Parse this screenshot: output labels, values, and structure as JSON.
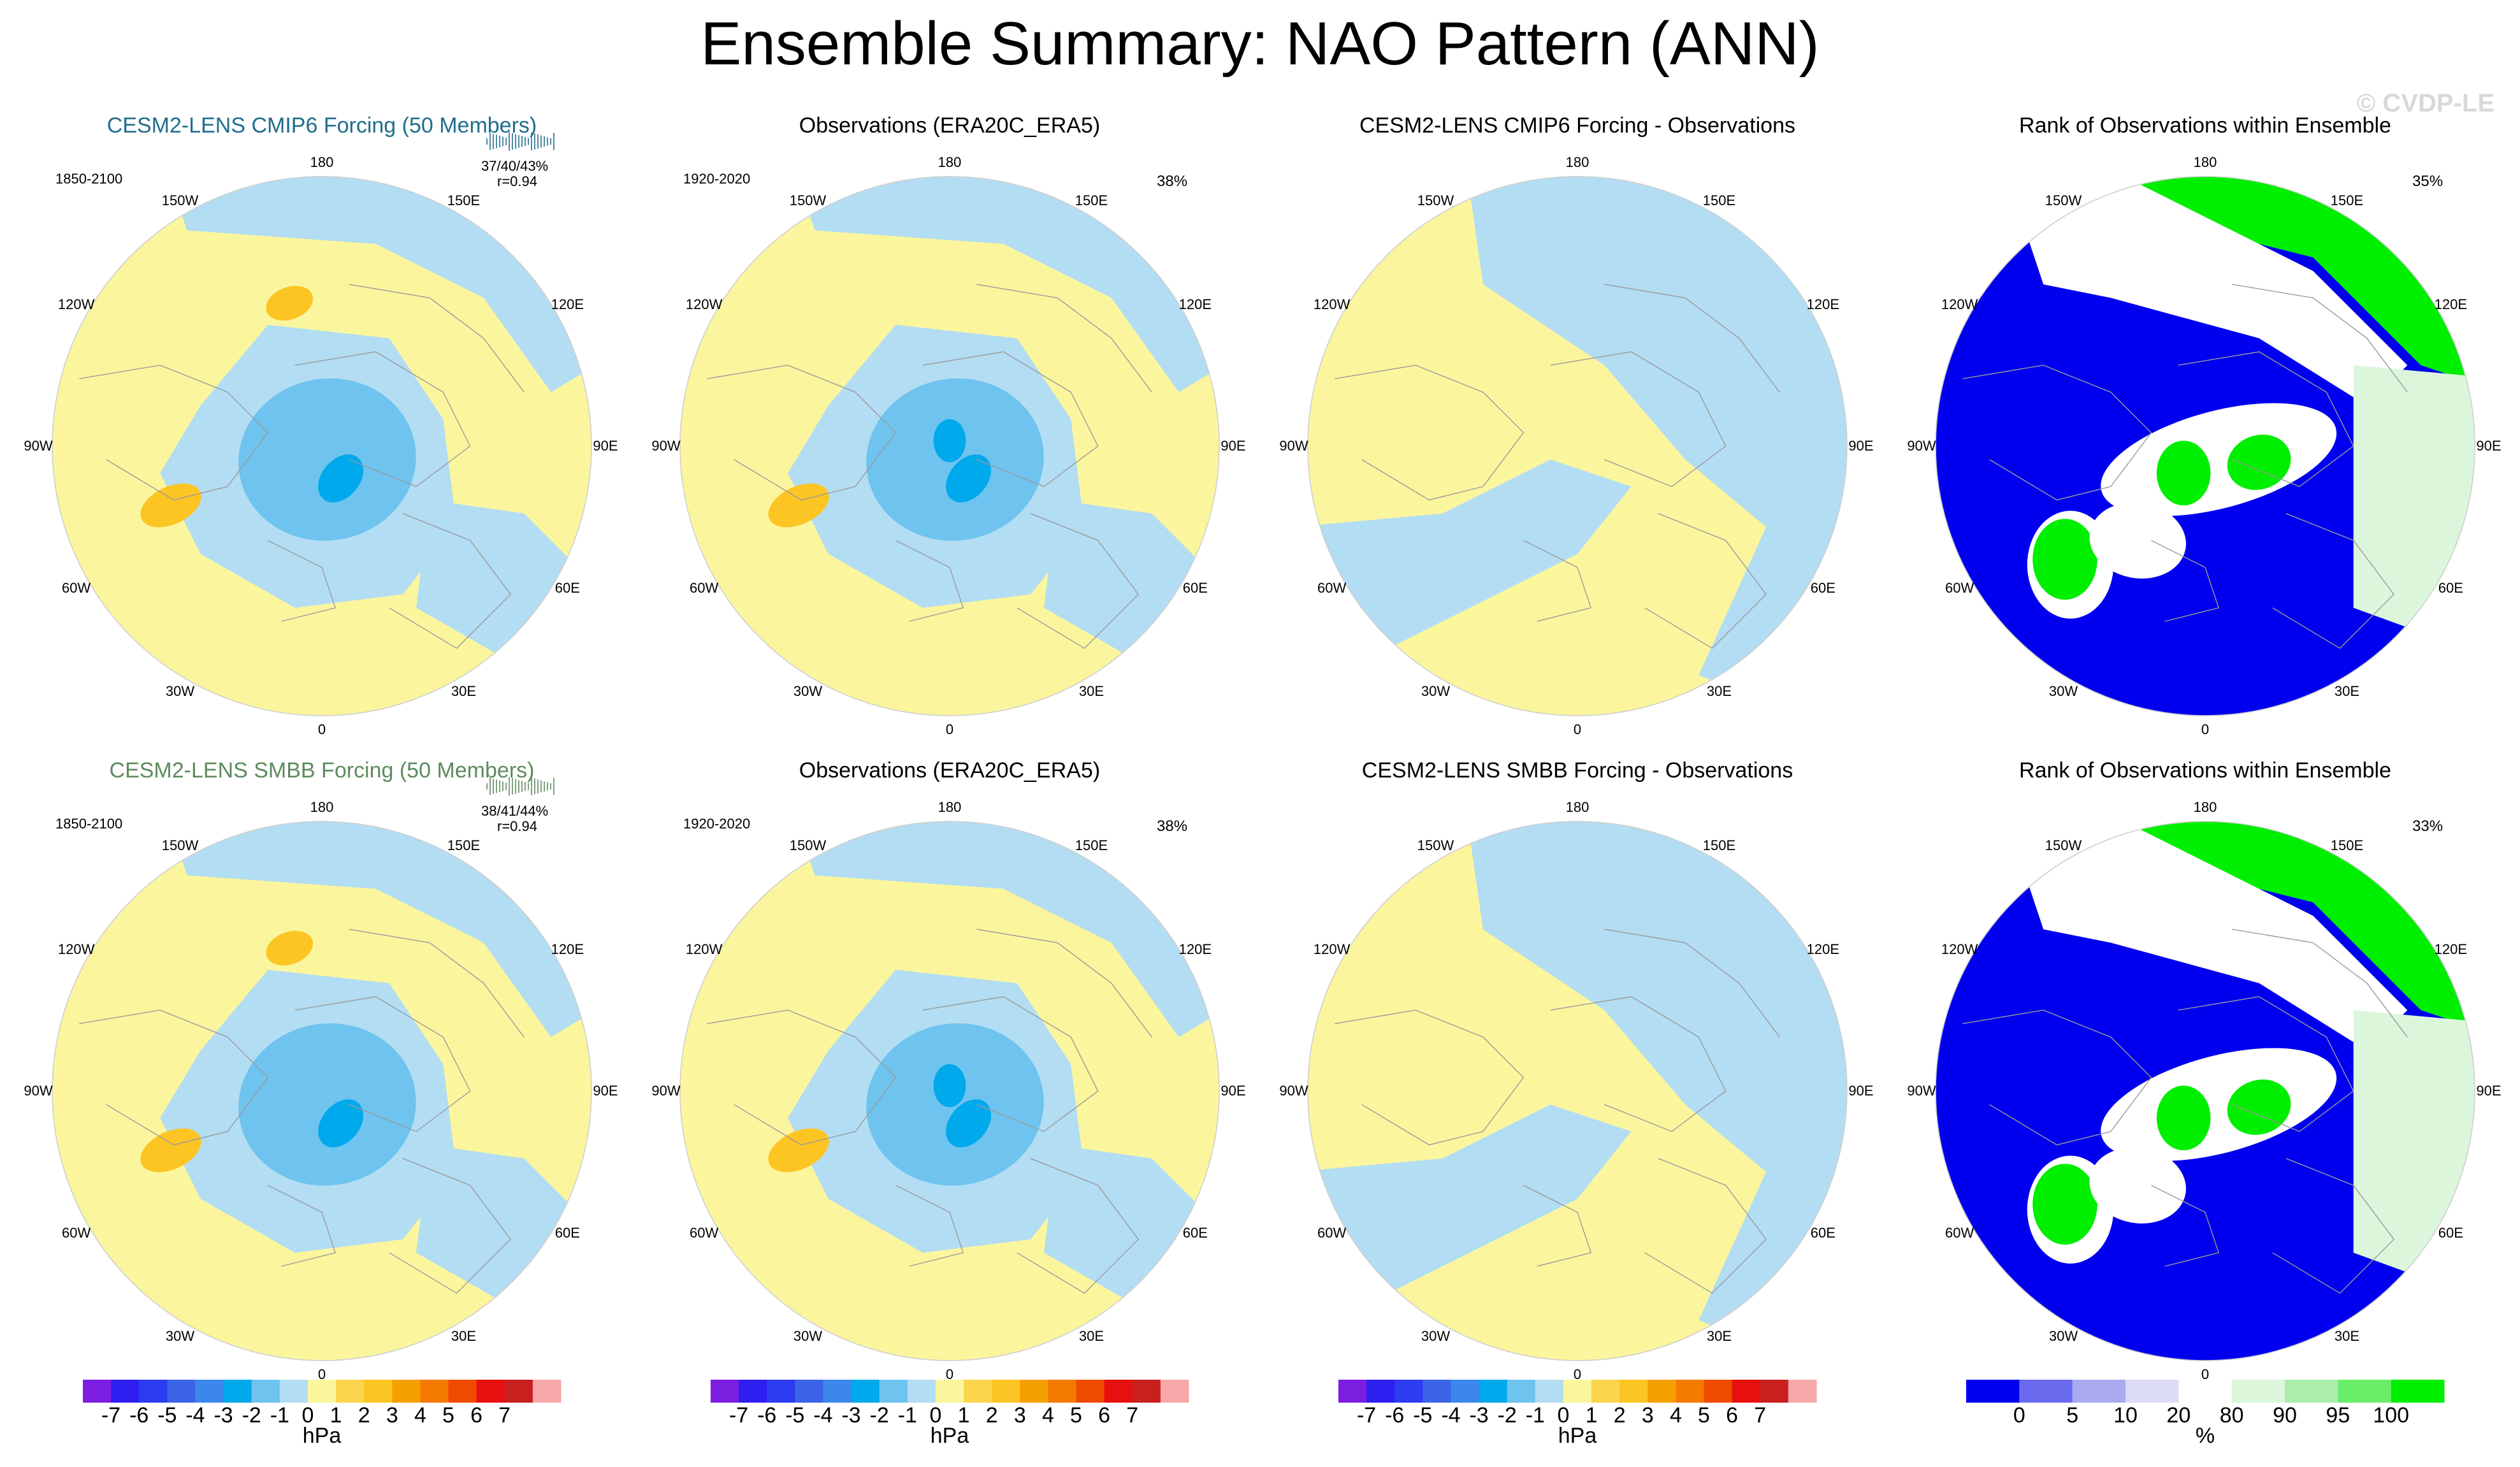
{
  "title": "Ensemble Summary: NAO Pattern (ANN)",
  "watermark": "© CVDP-LE",
  "colors": {
    "light_yellow": "#fbf69e",
    "light_blue": "#b3ddf2",
    "mid_blue": "#6ec3ef",
    "dark_blue": "#00a8ec",
    "orange": "#fcc524",
    "rank_blue": "#0000ee",
    "rank_green": "#00ee00",
    "model_title_1": "#1f6e8c",
    "model_title_2": "#5e8a5e"
  },
  "longitude_labels": [
    "180",
    "150E",
    "120E",
    "90E",
    "60E",
    "30E",
    "0",
    "30W",
    "60W",
    "90W",
    "120W",
    "150W"
  ],
  "rows": [
    {
      "panels": [
        {
          "title": "CESM2-LENS CMIP6 Forcing (50 Members)",
          "period": "1850-2100",
          "stats_line1": "37/40/43%",
          "stats_line2": "r=0.94",
          "pct": "",
          "kind": "model"
        },
        {
          "title": "Observations (ERA20C_ERA5)",
          "period": "1920-2020",
          "stats_line1": "",
          "stats_line2": "",
          "pct": "38%",
          "kind": "obs"
        },
        {
          "title": "CESM2-LENS CMIP6 Forcing - Observations",
          "period": "",
          "stats_line1": "",
          "stats_line2": "",
          "pct": "",
          "kind": "diff"
        },
        {
          "title": "Rank of Observations within Ensemble",
          "period": "",
          "stats_line1": "",
          "stats_line2": "",
          "pct": "35%",
          "kind": "rank"
        }
      ]
    },
    {
      "panels": [
        {
          "title": "CESM2-LENS SMBB Forcing (50 Members)",
          "period": "1850-2100",
          "stats_line1": "38/41/44%",
          "stats_line2": "r=0.94",
          "pct": "",
          "kind": "model"
        },
        {
          "title": "Observations (ERA20C_ERA5)",
          "period": "1920-2020",
          "stats_line1": "",
          "stats_line2": "",
          "pct": "38%",
          "kind": "obs"
        },
        {
          "title": "CESM2-LENS SMBB Forcing - Observations",
          "period": "",
          "stats_line1": "",
          "stats_line2": "",
          "pct": "",
          "kind": "diff"
        },
        {
          "title": "Rank of Observations within Ensemble",
          "period": "",
          "stats_line1": "",
          "stats_line2": "",
          "pct": "33%",
          "kind": "rank"
        }
      ]
    }
  ],
  "chart_data": {
    "type": "heatmap",
    "title": "Ensemble Summary: NAO Pattern (ANN)",
    "projection": "polar stereographic, Northern Hemisphere",
    "colorbars": [
      {
        "name": "hPa",
        "unit": "hPa",
        "ticks": [
          "-7",
          "-6",
          "-5",
          "-4",
          "-3",
          "-2",
          "-1",
          "0",
          "1",
          "2",
          "3",
          "4",
          "5",
          "6",
          "7"
        ],
        "colors": [
          "#7c1ee0",
          "#2e1ef0",
          "#2c3cf0",
          "#3c64e6",
          "#3c87ec",
          "#00a8ec",
          "#6ec3ef",
          "#b3ddf2",
          "#fbf69e",
          "#fcd54c",
          "#fcc524",
          "#f6a000",
          "#f57a00",
          "#ef4b00",
          "#e80f0f",
          "#c81f1f",
          "#f6a8a8"
        ]
      },
      {
        "name": "rank",
        "unit": "%",
        "ticks": [
          "0",
          "5",
          "10",
          "20",
          "80",
          "90",
          "95",
          "100"
        ],
        "colors": [
          "#0000ee",
          "#6a6aee",
          "#aaaaee",
          "#dcdcf6",
          "#ffffff",
          "#dcf6dc",
          "#aaeeaa",
          "#6aee6a",
          "#00ee00"
        ]
      }
    ]
  }
}
